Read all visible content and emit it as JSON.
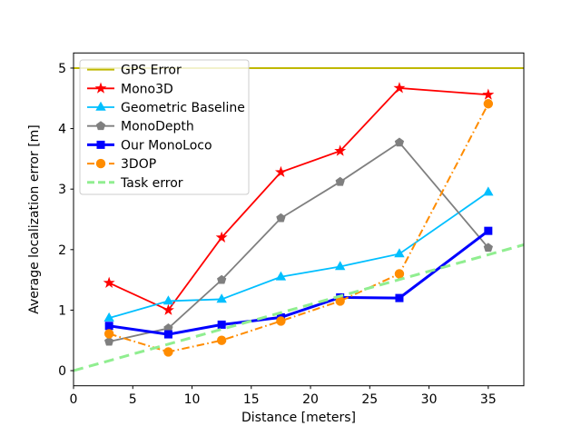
{
  "figure": {
    "background": "#ffffff"
  },
  "chart_data": {
    "type": "line",
    "title": "",
    "xlabel": "Distance [meters]",
    "ylabel": "Average localization error [m]",
    "xlim": [
      0,
      38
    ],
    "ylim": [
      -0.25,
      5.25
    ],
    "xticks": [
      0,
      5,
      10,
      15,
      20,
      25,
      30,
      35
    ],
    "yticks": [
      0,
      1,
      2,
      3,
      4,
      5
    ],
    "grid": false,
    "legend": {
      "position": "upper-left",
      "border_color": "#cccccc",
      "background": "#ffffff",
      "background_alpha": 0.8
    },
    "series": [
      {
        "name": "GPS Error",
        "color": "#bfb800",
        "line": "solid",
        "marker": "none",
        "width": 2,
        "x": [
          0,
          38
        ],
        "y": [
          5.0,
          5.0
        ]
      },
      {
        "name": "Mono3D",
        "color": "#ff0000",
        "line": "solid",
        "marker": "star",
        "width": 1.8,
        "x": [
          3,
          8,
          12.5,
          17.5,
          22.5,
          27.5,
          35
        ],
        "y": [
          1.45,
          1.0,
          2.2,
          3.28,
          3.63,
          4.67,
          4.56
        ]
      },
      {
        "name": "Geometric Baseline",
        "color": "#00bfff",
        "line": "solid",
        "marker": "triangle",
        "width": 1.8,
        "x": [
          3,
          8,
          12.5,
          17.5,
          22.5,
          27.5,
          35
        ],
        "y": [
          0.87,
          1.15,
          1.18,
          1.55,
          1.72,
          1.93,
          2.95
        ]
      },
      {
        "name": "MonoDepth",
        "color": "#7f7f7f",
        "line": "solid",
        "marker": "pentagon",
        "width": 1.8,
        "x": [
          3,
          8,
          12.5,
          17.5,
          22.5,
          27.5,
          35
        ],
        "y": [
          0.48,
          0.7,
          1.5,
          2.52,
          3.12,
          3.77,
          2.03
        ]
      },
      {
        "name": "Our MonoLoco",
        "color": "#0000ff",
        "line": "solid",
        "marker": "square",
        "width": 3,
        "x": [
          3,
          8,
          12.5,
          17.5,
          22.5,
          27.5,
          35
        ],
        "y": [
          0.74,
          0.6,
          0.76,
          0.88,
          1.21,
          1.2,
          2.31
        ]
      },
      {
        "name": "3DOP",
        "color": "#ff8c00",
        "line": "dashdot",
        "marker": "circle",
        "width": 2,
        "x": [
          3,
          8,
          12.5,
          17.5,
          22.5,
          27.5,
          35
        ],
        "y": [
          0.61,
          0.31,
          0.5,
          0.82,
          1.15,
          1.6,
          4.41
        ]
      },
      {
        "name": "Task error",
        "color": "#90ee90",
        "line": "dashed",
        "marker": "none",
        "width": 3,
        "x": [
          0,
          38
        ],
        "y": [
          0.0,
          2.08
        ]
      }
    ]
  }
}
